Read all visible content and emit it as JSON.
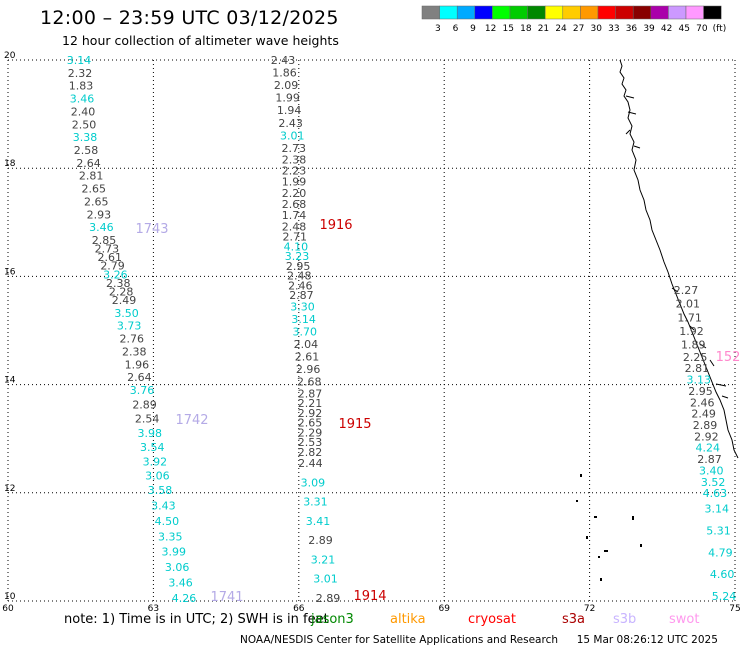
{
  "header": {
    "title": "12:00 – 23:59 UTC 03/12/2025",
    "subtitle": "12 hour collection of altimeter wave heights"
  },
  "legend": {
    "colors": [
      "#808080",
      "#00ffff",
      "#00aaff",
      "#0000ff",
      "#00ff00",
      "#00cc00",
      "#008800",
      "#ffff00",
      "#ffcc00",
      "#ff9900",
      "#ff0000",
      "#cc0000",
      "#880000",
      "#aa00aa",
      "#cc99ff",
      "#ff99ff",
      "#000000"
    ],
    "labels": [
      "3",
      "6",
      "9",
      "12",
      "15",
      "18",
      "21",
      "24",
      "27",
      "30",
      "33",
      "36",
      "39",
      "42",
      "45",
      "70",
      "(ft)"
    ]
  },
  "axes": {
    "x_ticks": [
      "60",
      "63",
      "66",
      "69",
      "72",
      "75"
    ],
    "y_ticks": [
      "10",
      "12",
      "14",
      "16",
      "18",
      "20"
    ]
  },
  "tracks": {
    "track_a": [
      {
        "v": "3.14",
        "c": "#00cccc"
      },
      {
        "v": "2.32",
        "c": "#444444"
      },
      {
        "v": "1.83",
        "c": "#444444"
      },
      {
        "v": "3.46",
        "c": "#00cccc"
      },
      {
        "v": "2.40",
        "c": "#444444"
      },
      {
        "v": "2.50",
        "c": "#444444"
      },
      {
        "v": "3.38",
        "c": "#00cccc"
      },
      {
        "v": "2.58",
        "c": "#444444"
      },
      {
        "v": "2.64",
        "c": "#444444"
      },
      {
        "v": "2.81",
        "c": "#444444"
      },
      {
        "v": "2.65",
        "c": "#444444"
      },
      {
        "v": "2.65",
        "c": "#444444"
      },
      {
        "v": "2.93",
        "c": "#444444"
      },
      {
        "v": "3.46",
        "c": "#00cccc"
      },
      {
        "v": "2.85",
        "c": "#444444"
      },
      {
        "v": "2.73",
        "c": "#444444"
      },
      {
        "v": "2.61",
        "c": "#444444"
      },
      {
        "v": "2.79",
        "c": "#444444"
      },
      {
        "v": "3.26",
        "c": "#00cccc"
      },
      {
        "v": "2.38",
        "c": "#444444"
      },
      {
        "v": "2.28",
        "c": "#444444"
      },
      {
        "v": "2.49",
        "c": "#444444"
      },
      {
        "v": "3.50",
        "c": "#00cccc"
      },
      {
        "v": "3.73",
        "c": "#00cccc"
      },
      {
        "v": "2.76",
        "c": "#444444"
      },
      {
        "v": "2.38",
        "c": "#444444"
      },
      {
        "v": "1.96",
        "c": "#444444"
      },
      {
        "v": "2.64",
        "c": "#444444"
      },
      {
        "v": "3.76",
        "c": "#00cccc"
      },
      {
        "v": "2.89",
        "c": "#444444"
      },
      {
        "v": "2.54",
        "c": "#444444"
      },
      {
        "v": "3.98",
        "c": "#00cccc"
      },
      {
        "v": "3.54",
        "c": "#00cccc"
      },
      {
        "v": "3.92",
        "c": "#00cccc"
      },
      {
        "v": "3.06",
        "c": "#00cccc"
      },
      {
        "v": "3.58",
        "c": "#00cccc"
      },
      {
        "v": "3.43",
        "c": "#00cccc"
      },
      {
        "v": "4.50",
        "c": "#00cccc"
      },
      {
        "v": "3.35",
        "c": "#00cccc"
      },
      {
        "v": "3.99",
        "c": "#00cccc"
      },
      {
        "v": "3.06",
        "c": "#00cccc"
      },
      {
        "v": "3.46",
        "c": "#00cccc"
      },
      {
        "v": "4.26",
        "c": "#00cccc"
      }
    ],
    "track_b": [
      {
        "v": "2.43",
        "c": "#444444"
      },
      {
        "v": "1.86",
        "c": "#444444"
      },
      {
        "v": "2.09",
        "c": "#444444"
      },
      {
        "v": "1.99",
        "c": "#444444"
      },
      {
        "v": "1.94",
        "c": "#444444"
      },
      {
        "v": "2.43",
        "c": "#444444"
      },
      {
        "v": "3.01",
        "c": "#00cccc"
      },
      {
        "v": "2.73",
        "c": "#444444"
      },
      {
        "v": "2.38",
        "c": "#444444"
      },
      {
        "v": "2.23",
        "c": "#444444"
      },
      {
        "v": "1.99",
        "c": "#444444"
      },
      {
        "v": "2.20",
        "c": "#444444"
      },
      {
        "v": "2.68",
        "c": "#444444"
      },
      {
        "v": "1.74",
        "c": "#444444"
      },
      {
        "v": "2.48",
        "c": "#444444"
      },
      {
        "v": "2.71",
        "c": "#444444"
      },
      {
        "v": "4.10",
        "c": "#00cccc"
      },
      {
        "v": "3.23",
        "c": "#00cccc"
      },
      {
        "v": "2.95",
        "c": "#444444"
      },
      {
        "v": "2.48",
        "c": "#444444"
      },
      {
        "v": "2.46",
        "c": "#444444"
      },
      {
        "v": "2.87",
        "c": "#444444"
      },
      {
        "v": "3.30",
        "c": "#00cccc"
      },
      {
        "v": "3.14",
        "c": "#00cccc"
      },
      {
        "v": "3.70",
        "c": "#00cccc"
      },
      {
        "v": "2.04",
        "c": "#444444"
      },
      {
        "v": "2.61",
        "c": "#444444"
      },
      {
        "v": "2.96",
        "c": "#444444"
      },
      {
        "v": "2.68",
        "c": "#444444"
      },
      {
        "v": "2.87",
        "c": "#444444"
      },
      {
        "v": "2.21",
        "c": "#444444"
      },
      {
        "v": "2.92",
        "c": "#444444"
      },
      {
        "v": "2.65",
        "c": "#444444"
      },
      {
        "v": "2.29",
        "c": "#444444"
      },
      {
        "v": "2.53",
        "c": "#444444"
      },
      {
        "v": "2.82",
        "c": "#444444"
      },
      {
        "v": "2.44",
        "c": "#444444"
      },
      {
        "v": "3.09",
        "c": "#00cccc"
      },
      {
        "v": "3.31",
        "c": "#00cccc"
      },
      {
        "v": "3.41",
        "c": "#00cccc"
      },
      {
        "v": "2.89",
        "c": "#444444"
      },
      {
        "v": "3.21",
        "c": "#00cccc"
      },
      {
        "v": "3.01",
        "c": "#00cccc"
      },
      {
        "v": "2.89",
        "c": "#444444"
      }
    ],
    "track_c": [
      {
        "v": "2.27",
        "c": "#444444"
      },
      {
        "v": "2.01",
        "c": "#444444"
      },
      {
        "v": "1.71",
        "c": "#444444"
      },
      {
        "v": "1.92",
        "c": "#444444"
      },
      {
        "v": "1.89",
        "c": "#444444"
      },
      {
        "v": "2.25",
        "c": "#444444"
      },
      {
        "v": "2.81",
        "c": "#444444"
      },
      {
        "v": "3.13",
        "c": "#00cccc"
      },
      {
        "v": "2.95",
        "c": "#444444"
      },
      {
        "v": "2.46",
        "c": "#444444"
      },
      {
        "v": "2.49",
        "c": "#444444"
      },
      {
        "v": "2.89",
        "c": "#444444"
      },
      {
        "v": "2.92",
        "c": "#444444"
      },
      {
        "v": "4.24",
        "c": "#00cccc"
      },
      {
        "v": "2.87",
        "c": "#444444"
      },
      {
        "v": "3.40",
        "c": "#00cccc"
      },
      {
        "v": "3.52",
        "c": "#00cccc"
      },
      {
        "v": "4.63",
        "c": "#00cccc"
      },
      {
        "v": "3.14",
        "c": "#00cccc"
      },
      {
        "v": "5.31",
        "c": "#00cccc"
      },
      {
        "v": "4.79",
        "c": "#00cccc"
      },
      {
        "v": "4.60",
        "c": "#00cccc"
      },
      {
        "v": "5.24",
        "c": "#00cccc"
      }
    ]
  },
  "pass_labels": [
    {
      "text": "1743",
      "color": "#b4aae6"
    },
    {
      "text": "1742",
      "color": "#b4aae6"
    },
    {
      "text": "1741",
      "color": "#b4aae6"
    },
    {
      "text": "1916",
      "color": "#cc0000"
    },
    {
      "text": "1915",
      "color": "#cc0000"
    },
    {
      "text": "1914",
      "color": "#cc0000"
    },
    {
      "text": "152",
      "color": "#ff88cc"
    }
  ],
  "footer": {
    "note": "note: 1) Time is in UTC; 2) SWH is in feet",
    "satellites": [
      {
        "name": "jason3",
        "color": "#008800"
      },
      {
        "name": "altika",
        "color": "#ff9900"
      },
      {
        "name": "cryosat",
        "color": "#ff0000"
      },
      {
        "name": "s3a",
        "color": "#aa0000"
      },
      {
        "name": "s3b",
        "color": "#c8b4ff"
      },
      {
        "name": "swot",
        "color": "#ff99ee"
      }
    ],
    "credit": "NOAA/NESDIS Center for Satellite Applications and Research",
    "timestamp": "15 Mar 08:26:12 UTC 2025"
  }
}
